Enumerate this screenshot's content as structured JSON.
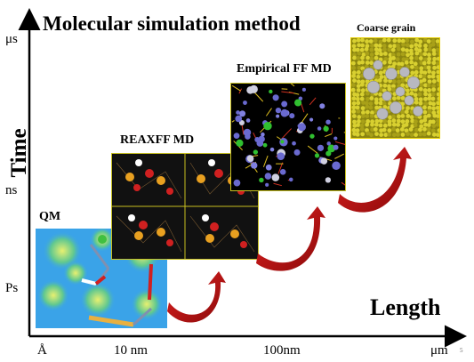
{
  "title": "Molecular simulation method",
  "axes": {
    "y_label": "Time",
    "x_label": "Length",
    "y_ticks": [
      "μs",
      "ns",
      "Ps"
    ],
    "x_ticks": [
      "Å",
      "10 nm",
      "100nm",
      "μm"
    ]
  },
  "stages": [
    {
      "label": "QM",
      "color": "#3aa3e8"
    },
    {
      "label": "REAXFF MD",
      "color": "#000000"
    },
    {
      "label": "Empirical FF MD",
      "color": "#000000"
    },
    {
      "label": "Coarse grain",
      "color": "#c8c020"
    }
  ],
  "footnote": "5",
  "colors": {
    "arrow": "#b81414",
    "frame": "#e8d000"
  }
}
